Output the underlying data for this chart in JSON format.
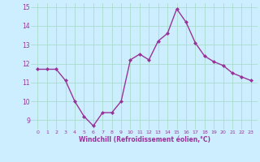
{
  "x": [
    0,
    1,
    2,
    3,
    4,
    5,
    6,
    7,
    8,
    9,
    10,
    11,
    12,
    13,
    14,
    15,
    16,
    17,
    18,
    19,
    20,
    21,
    22,
    23
  ],
  "y": [
    11.7,
    11.7,
    11.7,
    11.1,
    10.0,
    9.2,
    8.7,
    9.4,
    9.4,
    10.0,
    12.2,
    12.5,
    12.2,
    13.2,
    13.6,
    14.9,
    14.2,
    13.1,
    12.4,
    12.1,
    11.9,
    11.5,
    11.3,
    11.1
  ],
  "ylim": [
    8.5,
    15.2
  ],
  "yticks": [
    9,
    10,
    11,
    12,
    13,
    14,
    15
  ],
  "xticks": [
    0,
    1,
    2,
    3,
    4,
    5,
    6,
    7,
    8,
    9,
    10,
    11,
    12,
    13,
    14,
    15,
    16,
    17,
    18,
    19,
    20,
    21,
    22,
    23
  ],
  "line_color": "#993399",
  "marker": "D",
  "marker_size": 2.0,
  "bg_color": "#cceeff",
  "grid_color": "#aaddcc",
  "xlabel": "Windchill (Refroidissement éolien,°C)",
  "xlabel_color": "#993399",
  "tick_color": "#993399",
  "line_width": 1.0,
  "xtick_fontsize": 4.5,
  "ytick_fontsize": 5.5,
  "xlabel_fontsize": 5.5
}
